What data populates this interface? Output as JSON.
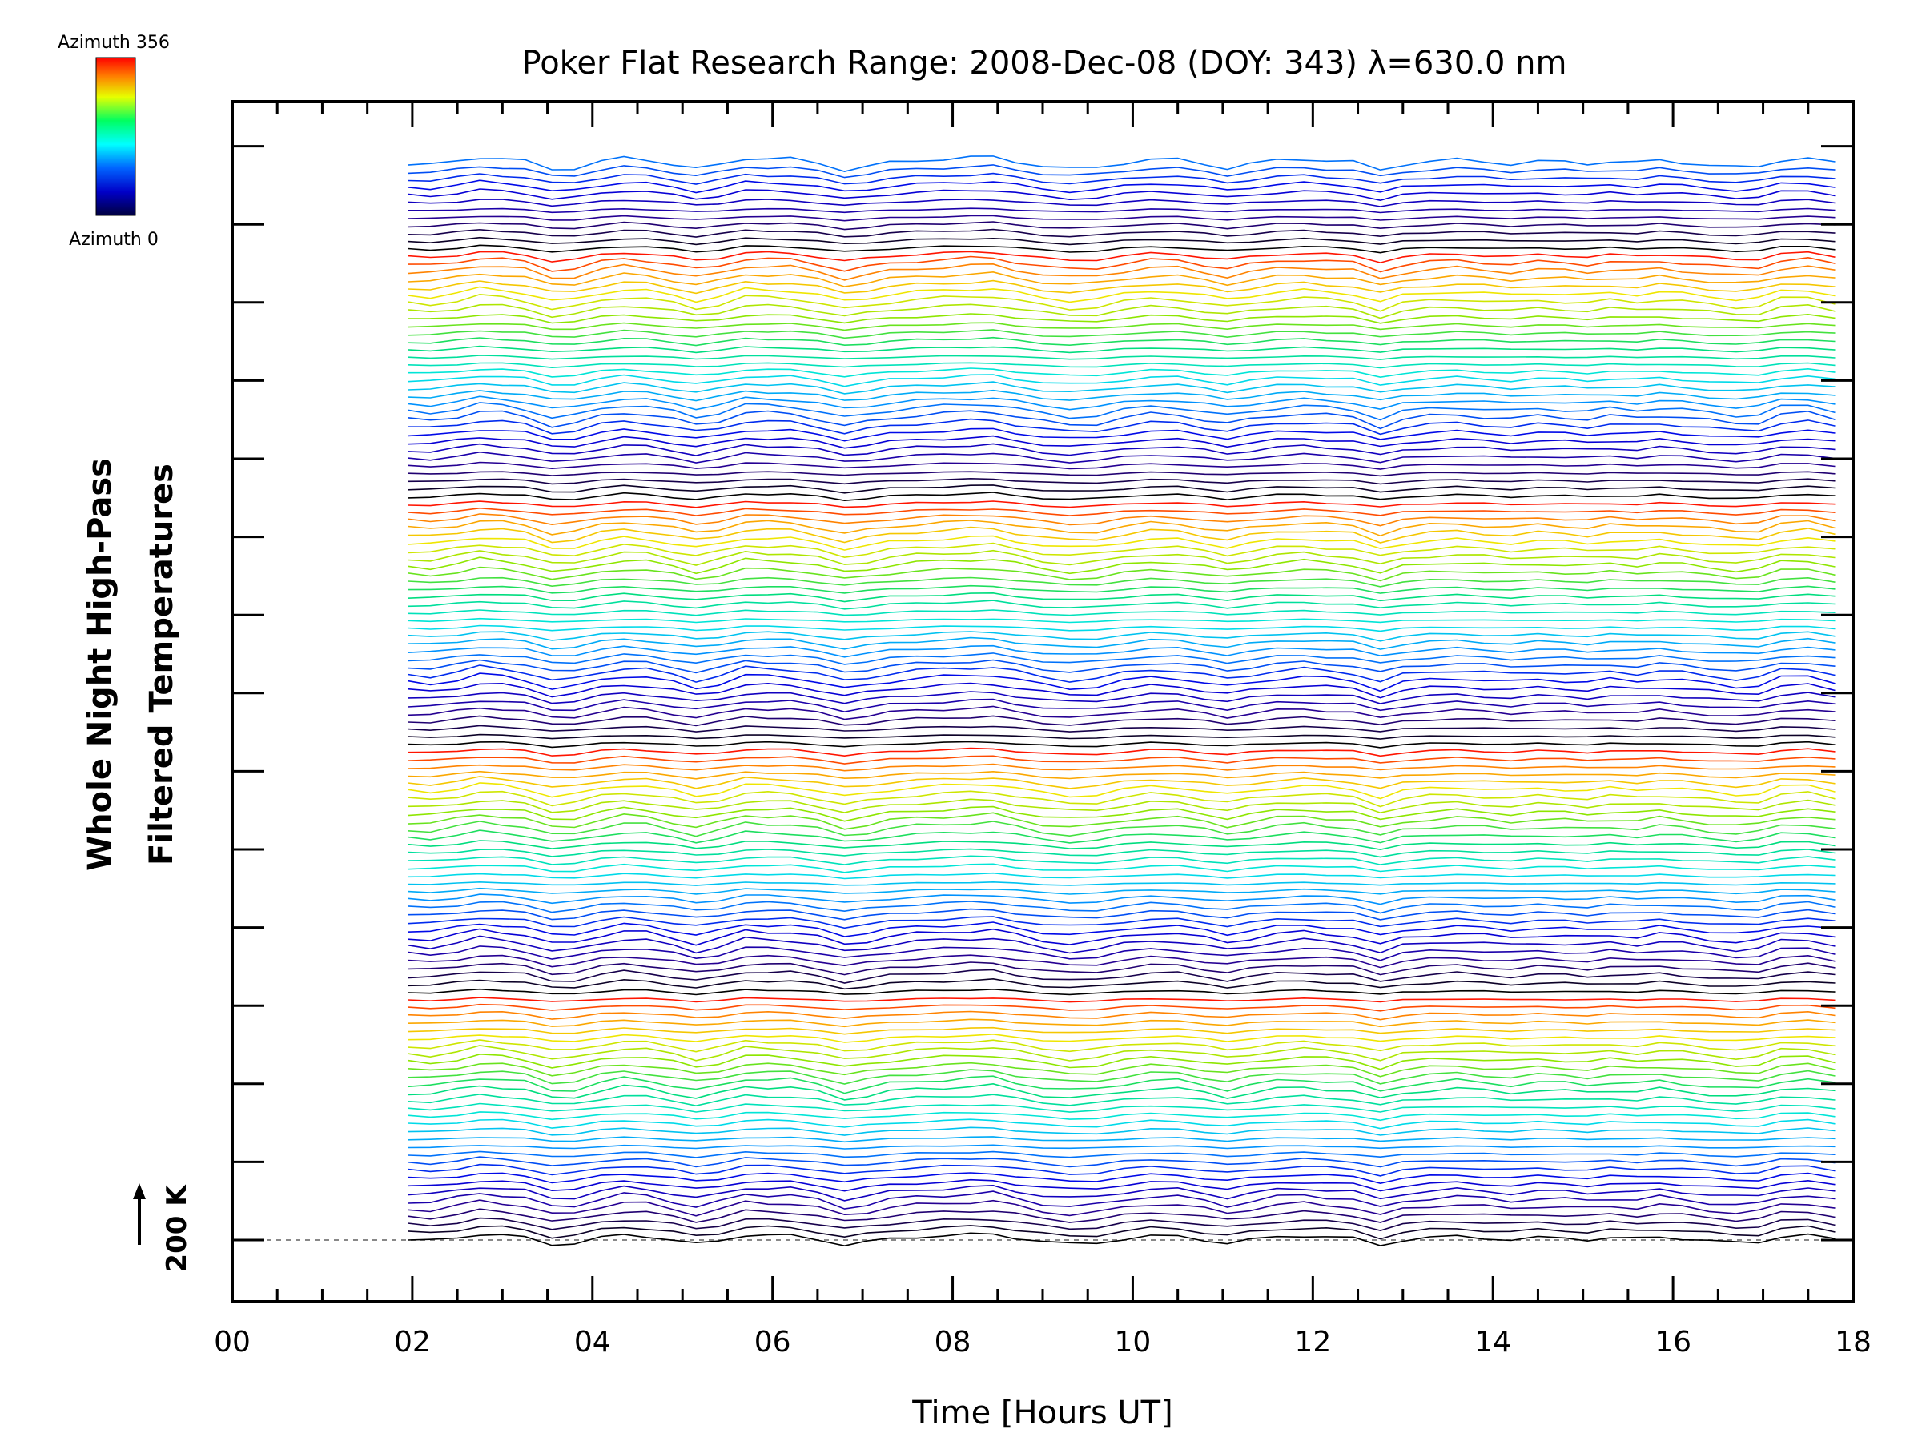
{
  "chart_data": {
    "type": "line",
    "title": "Poker Flat Research Range: 2008-Dec-08 (DOY: 343) λ=630.0 nm",
    "xlabel": "Time [Hours UT]",
    "ylabel_line1": "Whole Night High-Pass",
    "ylabel_line2": "Filtered Temperatures",
    "x_tick_labels": [
      "00",
      "02",
      "04",
      "06",
      "08",
      "10",
      "12",
      "14",
      "16",
      "18"
    ],
    "xlim": [
      0,
      18
    ],
    "x_range_data": [
      1.95,
      17.8
    ],
    "scale_bar_label": "200 K",
    "baseline_label_value": 200,
    "legend": {
      "top_label": "Azimuth 356",
      "bottom_label": "Azimuth 0",
      "azimuth_min": 0,
      "azimuth_max": 356,
      "colormap": "rainbow"
    },
    "num_traces": 140,
    "traces_per_color_cycle": 32,
    "common_waveform": {
      "description": "shared high-pass filtered temperature fluctuation (relative units)",
      "x": [
        1.95,
        2.2,
        2.5,
        2.75,
        3.0,
        3.25,
        3.55,
        3.8,
        4.1,
        4.35,
        4.6,
        4.9,
        5.15,
        5.4,
        5.7,
        5.95,
        6.2,
        6.5,
        6.8,
        7.05,
        7.3,
        7.6,
        7.9,
        8.2,
        8.45,
        8.7,
        9.0,
        9.3,
        9.6,
        9.9,
        10.2,
        10.5,
        10.8,
        11.05,
        11.3,
        11.6,
        11.9,
        12.15,
        12.45,
        12.75,
        13.0,
        13.3,
        13.6,
        13.9,
        14.2,
        14.5,
        14.8,
        15.05,
        15.3,
        15.6,
        15.85,
        16.1,
        16.4,
        16.7,
        16.95,
        17.2,
        17.5,
        17.8
      ],
      "y": [
        0.0,
        -0.1,
        0.3,
        0.75,
        0.6,
        0.3,
        -0.55,
        -0.4,
        0.3,
        0.65,
        0.5,
        0.0,
        -0.5,
        -0.1,
        0.65,
        0.6,
        0.55,
        0.1,
        -0.6,
        -0.25,
        0.15,
        0.4,
        0.55,
        0.7,
        0.75,
        0.3,
        -0.2,
        -0.5,
        -0.35,
        0.15,
        0.5,
        0.45,
        0.0,
        -0.4,
        0.0,
        0.4,
        0.55,
        0.4,
        0.2,
        -0.65,
        0.0,
        0.3,
        0.45,
        0.25,
        0.05,
        0.3,
        0.2,
        0.05,
        0.3,
        0.15,
        0.4,
        0.2,
        -0.1,
        -0.35,
        -0.25,
        0.45,
        0.6,
        0.1
      ]
    }
  }
}
